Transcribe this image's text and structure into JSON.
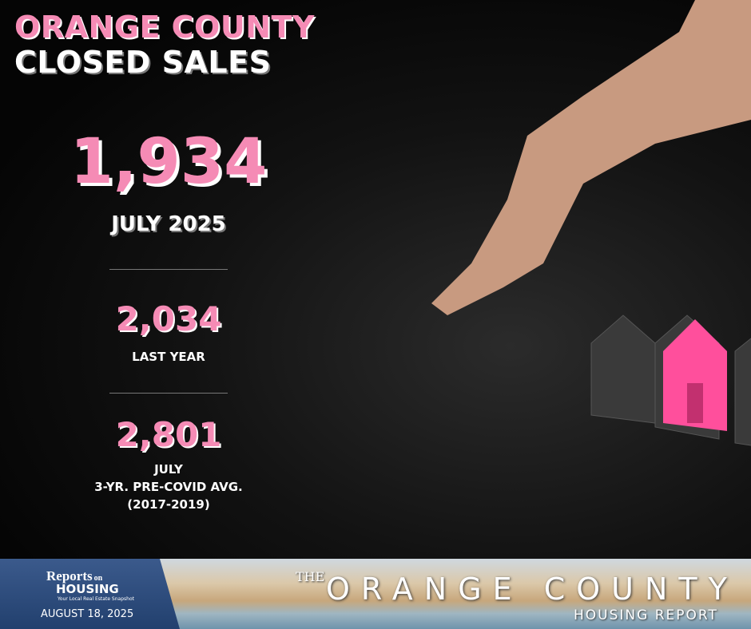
{
  "header": {
    "title_line1": "ORANGE COUNTY",
    "title_line2": "CLOSED SALES"
  },
  "stats": {
    "current": {
      "value": "1,934",
      "label": "JULY 2025"
    },
    "last_year": {
      "value": "2,034",
      "label": "LAST YEAR"
    },
    "pre_covid": {
      "value": "2,801",
      "label_lines": [
        "JULY",
        "3-YR. PRE-COVID AVG.",
        "(2017-2019)"
      ]
    }
  },
  "footer": {
    "logo": {
      "reports": "Reports",
      "on": "on",
      "housing": "HOUSING",
      "tagline": "Your Local Real Estate Snapshot"
    },
    "date": "AUGUST 18, 2025",
    "report": {
      "the": "THE",
      "name": "ORANGE COUNTY",
      "subtitle": "HOUSING REPORT"
    }
  }
}
